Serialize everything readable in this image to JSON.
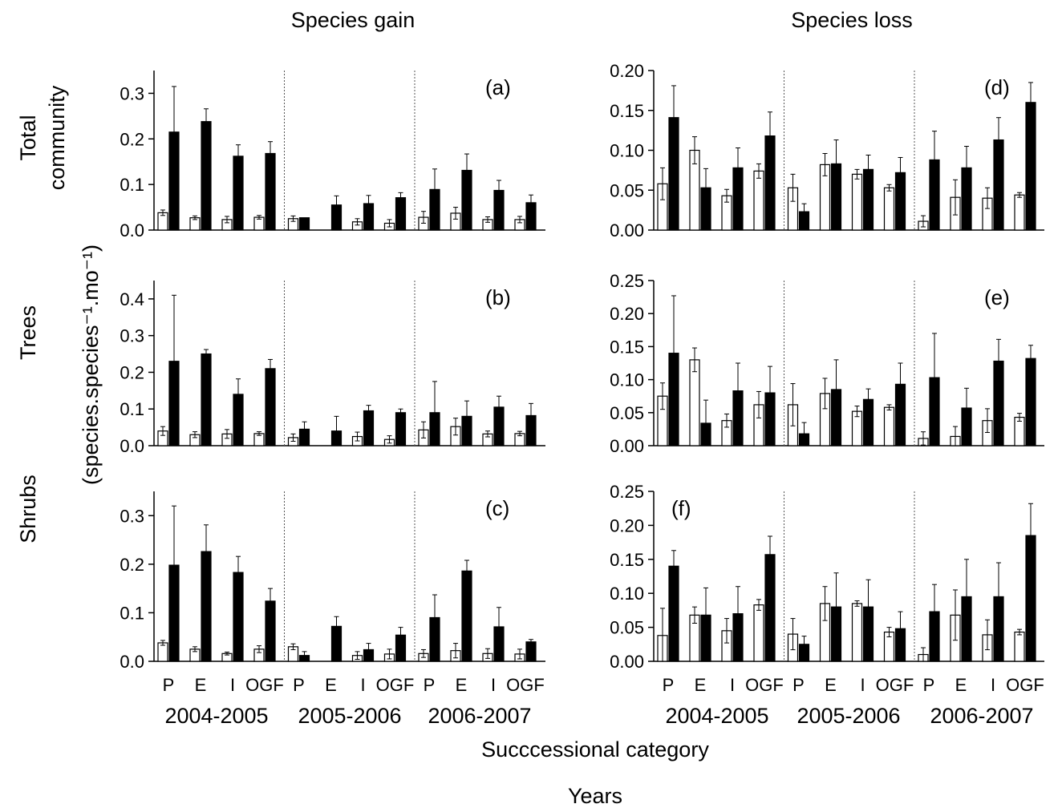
{
  "headers": {
    "gain": "Species gain",
    "loss": "Species loss"
  },
  "row_labels": {
    "total_line1": "Total",
    "total_line2": "community",
    "trees": "Trees",
    "shrubs": "Shrubs"
  },
  "y_axis_label": "(species.species⁻¹.mo⁻¹)",
  "x_label_categories": "Succcessional category",
  "x_label_years": "Years",
  "category_ticks": [
    "P",
    "E",
    "I",
    "OGF"
  ],
  "year_groups": [
    "2004-2005",
    "2005-2006",
    "2006-2007"
  ],
  "chart_data": [
    {
      "type": "bar",
      "panel": "(a)",
      "title": "Species gain",
      "row": "Total community",
      "ylim": [
        0,
        0.35
      ],
      "yticks": [
        0.0,
        0.1,
        0.2,
        0.3
      ],
      "decimals": 1,
      "groups": [
        "2004-2005",
        "2005-2006",
        "2006-2007"
      ],
      "categories": [
        "P",
        "E",
        "I",
        "OGF"
      ],
      "series": [
        {
          "name": "",
          "color": "#ffffff",
          "values": [
            [
              0.038,
              0.027,
              0.023,
              0.028
            ],
            [
              0.025,
              null,
              0.018,
              0.015
            ],
            [
              0.028,
              0.037,
              0.023,
              0.023
            ]
          ],
          "errors": [
            [
              0.006,
              0.004,
              0.007,
              0.004
            ],
            [
              0.006,
              null,
              0.007,
              0.008
            ],
            [
              0.013,
              0.013,
              0.006,
              0.007
            ]
          ]
        },
        {
          "name": "",
          "color": "#000000",
          "values": [
            [
              0.215,
              0.238,
              0.162,
              0.168
            ],
            [
              0.027,
              0.055,
              0.058,
              0.071
            ],
            [
              0.089,
              0.131,
              0.087,
              0.06
            ]
          ],
          "errors": [
            [
              0.1,
              0.028,
              0.025,
              0.026
            ],
            [
              0.0,
              0.02,
              0.018,
              0.011
            ],
            [
              0.045,
              0.036,
              0.022,
              0.017
            ]
          ]
        }
      ]
    },
    {
      "type": "bar",
      "panel": "(b)",
      "title": "Species gain",
      "row": "Trees",
      "ylim": [
        0,
        0.45
      ],
      "yticks": [
        0.0,
        0.1,
        0.2,
        0.3,
        0.4
      ],
      "decimals": 1,
      "groups": [
        "2004-2005",
        "2005-2006",
        "2006-2007"
      ],
      "categories": [
        "P",
        "E",
        "I",
        "OGF"
      ],
      "series": [
        {
          "name": "",
          "color": "#ffffff",
          "values": [
            [
              0.04,
              0.03,
              0.032,
              0.033
            ],
            [
              0.022,
              null,
              0.025,
              0.017
            ],
            [
              0.043,
              0.052,
              0.032,
              0.033
            ]
          ],
          "errors": [
            [
              0.012,
              0.008,
              0.012,
              0.005
            ],
            [
              0.01,
              null,
              0.012,
              0.01
            ],
            [
              0.022,
              0.023,
              0.008,
              0.006
            ]
          ]
        },
        {
          "name": "",
          "color": "#000000",
          "values": [
            [
              0.23,
              0.25,
              0.14,
              0.21
            ],
            [
              0.045,
              0.04,
              0.095,
              0.09
            ],
            [
              0.09,
              0.08,
              0.105,
              0.082
            ]
          ],
          "errors": [
            [
              0.18,
              0.012,
              0.042,
              0.025
            ],
            [
              0.02,
              0.04,
              0.015,
              0.01
            ],
            [
              0.085,
              0.042,
              0.03,
              0.033
            ]
          ]
        }
      ]
    },
    {
      "type": "bar",
      "panel": "(c)",
      "title": "Species gain",
      "row": "Shrubs",
      "ylim": [
        0,
        0.35
      ],
      "yticks": [
        0.0,
        0.1,
        0.2,
        0.3
      ],
      "decimals": 1,
      "groups": [
        "2004-2005",
        "2005-2006",
        "2006-2007"
      ],
      "categories": [
        "P",
        "E",
        "I",
        "OGF"
      ],
      "series": [
        {
          "name": "",
          "color": "#ffffff",
          "values": [
            [
              0.038,
              0.025,
              0.016,
              0.025
            ],
            [
              0.03,
              null,
              0.012,
              0.015
            ],
            [
              0.016,
              0.022,
              0.016,
              0.015
            ]
          ],
          "errors": [
            [
              0.005,
              0.005,
              0.003,
              0.007
            ],
            [
              0.006,
              null,
              0.008,
              0.01
            ],
            [
              0.008,
              0.015,
              0.01,
              0.01
            ]
          ]
        },
        {
          "name": "",
          "color": "#000000",
          "values": [
            [
              0.198,
              0.226,
              0.183,
              0.124
            ],
            [
              0.012,
              0.072,
              0.024,
              0.054
            ],
            [
              0.09,
              0.186,
              0.071,
              0.04
            ]
          ],
          "errors": [
            [
              0.122,
              0.055,
              0.033,
              0.026
            ],
            [
              0.008,
              0.02,
              0.013,
              0.016
            ],
            [
              0.047,
              0.022,
              0.04,
              0.005
            ]
          ]
        }
      ]
    },
    {
      "type": "bar",
      "panel": "(d)",
      "title": "Species loss",
      "row": "Total community",
      "ylim": [
        0,
        0.2
      ],
      "yticks": [
        0.0,
        0.05,
        0.1,
        0.15,
        0.2
      ],
      "decimals": 2,
      "groups": [
        "2004-2005",
        "2005-2006",
        "2006-2007"
      ],
      "categories": [
        "P",
        "E",
        "I",
        "OGF"
      ],
      "series": [
        {
          "name": "",
          "color": "#ffffff",
          "values": [
            [
              0.058,
              0.1,
              0.043,
              0.074
            ],
            [
              0.053,
              0.082,
              0.07,
              0.053
            ],
            [
              0.011,
              0.041,
              0.04,
              0.044
            ]
          ],
          "errors": [
            [
              0.02,
              0.017,
              0.008,
              0.009
            ],
            [
              0.017,
              0.014,
              0.006,
              0.004
            ],
            [
              0.007,
              0.022,
              0.013,
              0.003
            ]
          ]
        },
        {
          "name": "",
          "color": "#000000",
          "values": [
            [
              0.141,
              0.053,
              0.078,
              0.118
            ],
            [
              0.023,
              0.083,
              0.076,
              0.072
            ],
            [
              0.088,
              0.078,
              0.113,
              0.16
            ]
          ],
          "errors": [
            [
              0.04,
              0.024,
              0.025,
              0.03
            ],
            [
              0.01,
              0.03,
              0.018,
              0.019
            ],
            [
              0.036,
              0.027,
              0.028,
              0.025
            ]
          ]
        }
      ]
    },
    {
      "type": "bar",
      "panel": "(e)",
      "title": "Species loss",
      "row": "Trees",
      "ylim": [
        0,
        0.25
      ],
      "yticks": [
        0.0,
        0.05,
        0.1,
        0.15,
        0.2,
        0.25
      ],
      "decimals": 2,
      "groups": [
        "2004-2005",
        "2005-2006",
        "2006-2007"
      ],
      "categories": [
        "P",
        "E",
        "I",
        "OGF"
      ],
      "series": [
        {
          "name": "",
          "color": "#ffffff",
          "values": [
            [
              0.075,
              0.13,
              0.038,
              0.062
            ],
            [
              0.062,
              0.079,
              0.052,
              0.058
            ],
            [
              0.011,
              0.014,
              0.038,
              0.043
            ]
          ],
          "errors": [
            [
              0.02,
              0.018,
              0.01,
              0.02
            ],
            [
              0.032,
              0.023,
              0.008,
              0.004
            ],
            [
              0.01,
              0.015,
              0.018,
              0.006
            ]
          ]
        },
        {
          "name": "",
          "color": "#000000",
          "values": [
            [
              0.14,
              0.034,
              0.083,
              0.08
            ],
            [
              0.018,
              0.085,
              0.07,
              0.093
            ],
            [
              0.103,
              0.057,
              0.128,
              0.132
            ]
          ],
          "errors": [
            [
              0.087,
              0.035,
              0.042,
              0.04
            ],
            [
              0.017,
              0.045,
              0.016,
              0.032
            ],
            [
              0.067,
              0.03,
              0.033,
              0.02
            ]
          ]
        }
      ]
    },
    {
      "type": "bar",
      "panel": "(f)",
      "title": "Species loss",
      "row": "Shrubs",
      "ylim": [
        0,
        0.25
      ],
      "yticks": [
        0.0,
        0.05,
        0.1,
        0.15,
        0.2,
        0.25
      ],
      "decimals": 2,
      "groups": [
        "2004-2005",
        "2005-2006",
        "2006-2007"
      ],
      "categories": [
        "P",
        "E",
        "I",
        "OGF"
      ],
      "series": [
        {
          "name": "",
          "color": "#ffffff",
          "values": [
            [
              0.038,
              0.068,
              0.045,
              0.083
            ],
            [
              0.04,
              0.085,
              0.085,
              0.043
            ],
            [
              0.01,
              0.068,
              0.039,
              0.043
            ]
          ],
          "errors": [
            [
              0.04,
              0.012,
              0.018,
              0.008
            ],
            [
              0.023,
              0.025,
              0.004,
              0.007
            ],
            [
              0.01,
              0.037,
              0.022,
              0.004
            ]
          ]
        },
        {
          "name": "",
          "color": "#000000",
          "values": [
            [
              0.14,
              0.068,
              0.07,
              0.157
            ],
            [
              0.025,
              0.08,
              0.08,
              0.048
            ],
            [
              0.073,
              0.095,
              0.095,
              0.185
            ]
          ],
          "errors": [
            [
              0.023,
              0.04,
              0.04,
              0.027
            ],
            [
              0.012,
              0.05,
              0.04,
              0.025
            ],
            [
              0.04,
              0.055,
              0.05,
              0.047
            ]
          ]
        }
      ]
    }
  ]
}
